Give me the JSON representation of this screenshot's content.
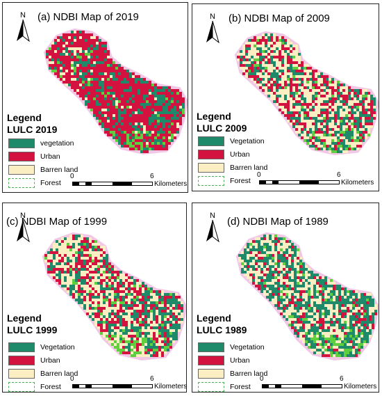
{
  "colors": {
    "vegetation": "#1f8a6a",
    "urban": "#d3123f",
    "barren": "#fbeec2",
    "forest": "#5fcf3f",
    "halo": "#f2c7e6"
  },
  "panels": [
    {
      "title": "(a) NDBI Map of 2019",
      "north": "N",
      "legend_heading": "Legend",
      "legend_subheading": "LULC 2019",
      "legend": [
        "vegetation",
        "Urban",
        "Barren land",
        "Forest"
      ],
      "scale": {
        "zero": "0",
        "max": "6",
        "unit": "Kilometers"
      }
    },
    {
      "title": "(b) NDBI Map of  2009",
      "north": "N",
      "legend_heading": "Legend",
      "legend_subheading": "LULC 2009",
      "legend": [
        "Vegetation",
        "Urban",
        "Barren land",
        "Forest"
      ],
      "scale": {
        "zero": "0",
        "max": "6",
        "unit": "Kilometers"
      }
    },
    {
      "title": "(c) NDBI Map of 1999",
      "north": "N",
      "legend_heading": "Legend",
      "legend_subheading": "LULC 1999",
      "legend": [
        "Vegetation",
        "Urban",
        "Barren land",
        "Forest"
      ],
      "scale": {
        "zero": "0",
        "max": "6",
        "unit": "Kilometers"
      }
    },
    {
      "title": "(d) NDBI Map of 1989",
      "north": "N",
      "legend_heading": "Legend",
      "legend_subheading": "LULC 1989",
      "legend": [
        "Vegetation",
        "Urban",
        "Barren land",
        "Forest"
      ],
      "scale": {
        "zero": "0",
        "max": "6",
        "unit": "Kilometers"
      }
    }
  ]
}
